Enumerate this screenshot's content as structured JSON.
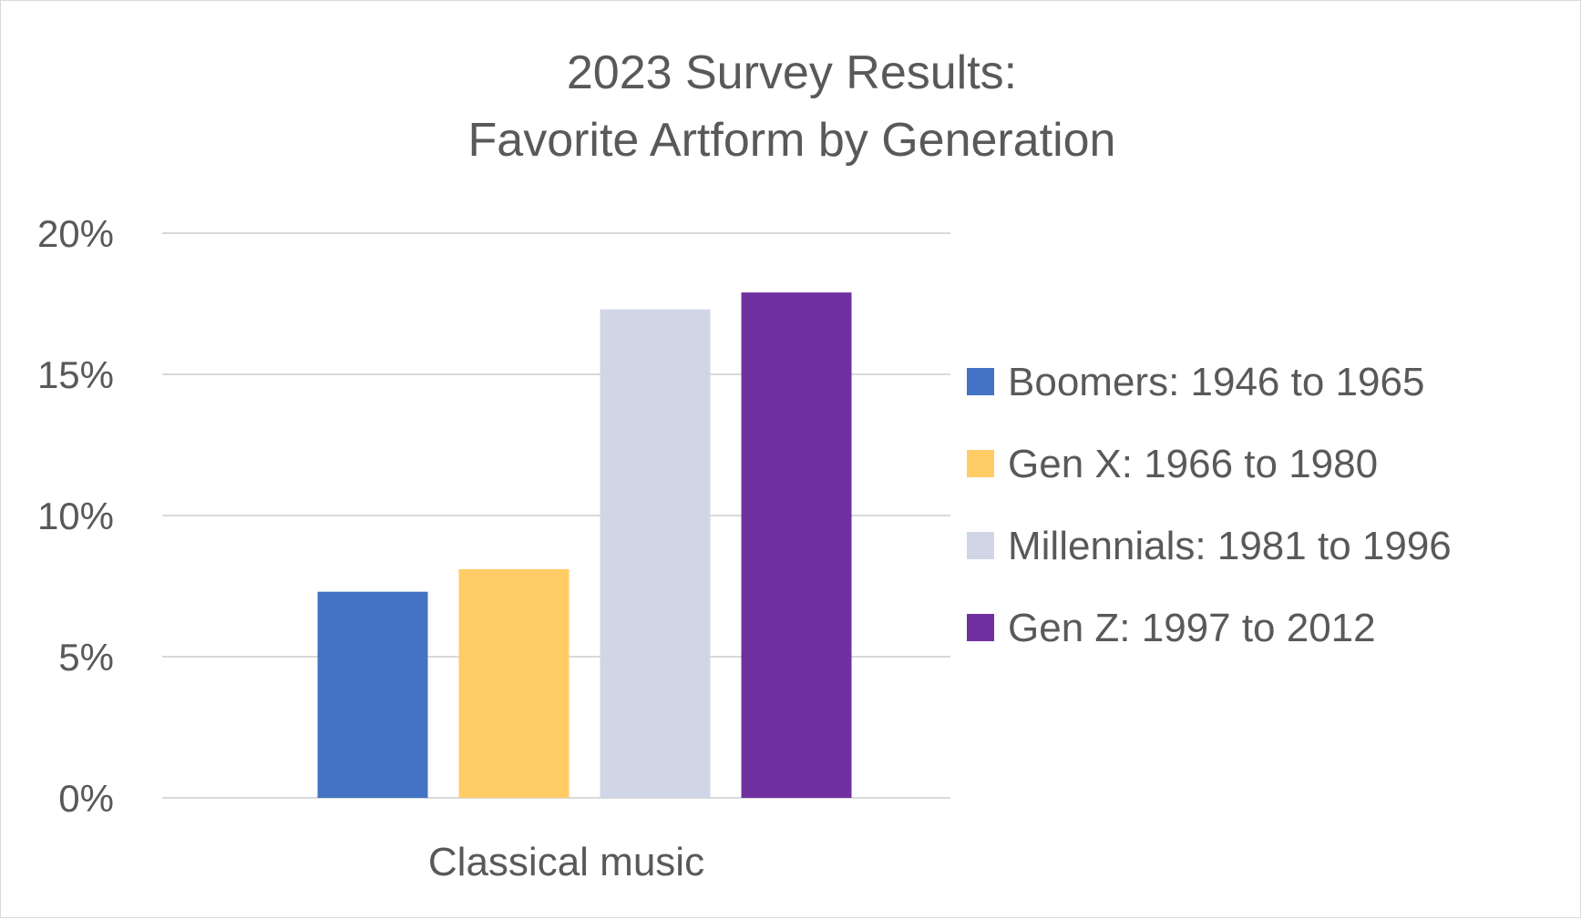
{
  "chart_data": {
    "type": "bar",
    "title": "2023 Survey Results:",
    "subtitle": "Favorite Artform by Generation",
    "categories": [
      "Classical music"
    ],
    "series": [
      {
        "name": "Boomers: 1946 to 1965",
        "values": [
          7.3
        ],
        "color": "#4472c4"
      },
      {
        "name": "Gen X: 1966 to 1980",
        "values": [
          8.1
        ],
        "color": "#ffcc66"
      },
      {
        "name": "Millennials: 1981 to 1996",
        "values": [
          17.3
        ],
        "color": "#d0d6e6"
      },
      {
        "name": "Gen Z: 1997 to 2012",
        "values": [
          17.9
        ],
        "color": "#7030a0"
      }
    ],
    "yticks": [
      "0%",
      "5%",
      "10%",
      "15%",
      "20%"
    ],
    "ytick_values": [
      0,
      5,
      10,
      15,
      20
    ],
    "ylim": [
      0,
      20
    ],
    "y_unit": "%",
    "xlabel": "",
    "ylabel": "",
    "grid": true,
    "legend_position": "right"
  }
}
